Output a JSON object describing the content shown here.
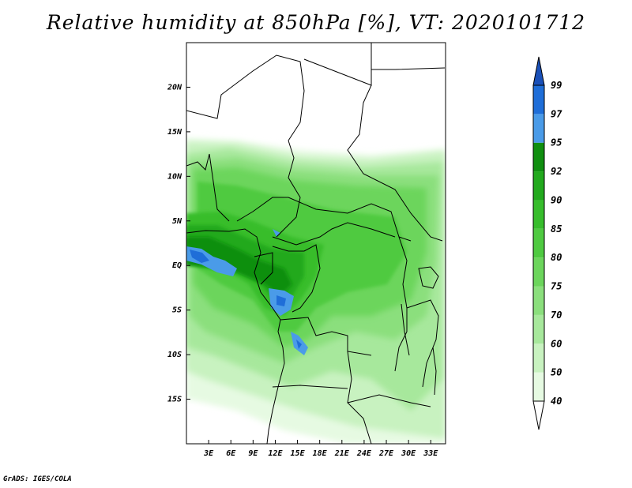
{
  "title": "Relative humidity at 850hPa [%], VT: 2020101712",
  "credit": "GrADS: IGES/COLA",
  "map": {
    "lon_range": [
      0,
      35
    ],
    "lat_range": [
      -20,
      25
    ],
    "x_ticks": [
      {
        "value": 3,
        "label": "3E"
      },
      {
        "value": 6,
        "label": "6E"
      },
      {
        "value": 9,
        "label": "9E"
      },
      {
        "value": 12,
        "label": "12E"
      },
      {
        "value": 15,
        "label": "15E"
      },
      {
        "value": 18,
        "label": "18E"
      },
      {
        "value": 21,
        "label": "21E"
      },
      {
        "value": 24,
        "label": "24E"
      },
      {
        "value": 27,
        "label": "27E"
      },
      {
        "value": 30,
        "label": "30E"
      },
      {
        "value": 33,
        "label": "33E"
      }
    ],
    "y_ticks": [
      {
        "value": 20,
        "label": "20N"
      },
      {
        "value": 15,
        "label": "15N"
      },
      {
        "value": 10,
        "label": "10N"
      },
      {
        "value": 5,
        "label": "5N"
      },
      {
        "value": 0,
        "label": "EQ"
      },
      {
        "value": -5,
        "label": "5S"
      },
      {
        "value": -10,
        "label": "10S"
      },
      {
        "value": -15,
        "label": "15S"
      }
    ]
  },
  "legend": {
    "levels": [
      "40",
      "50",
      "60",
      "70",
      "75",
      "80",
      "85",
      "90",
      "92",
      "95",
      "97",
      "99"
    ],
    "colors": [
      "#ffffff",
      "#e6fae2",
      "#c8f2c0",
      "#a7e89c",
      "#8bdf7d",
      "#6cd55c",
      "#4fca41",
      "#37bd2c",
      "#22a91d",
      "#108f10",
      "#4a9be8",
      "#1f6ed8",
      "#1a50b8"
    ]
  }
}
